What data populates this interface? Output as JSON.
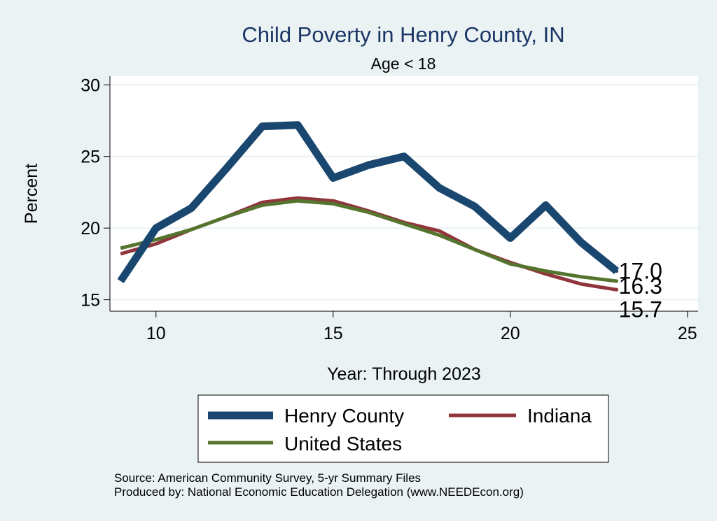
{
  "chart_data": {
    "type": "line",
    "title": "Child Poverty in Henry County, IN",
    "subtitle": "Age < 18",
    "xlabel": "Year: Through 2023",
    "ylabel": "Percent",
    "xlim": [
      8.7,
      25.3
    ],
    "ylim": [
      14.2,
      30.6
    ],
    "x_ticks": [
      "10",
      "15",
      "20",
      "25"
    ],
    "y_ticks": [
      "15",
      "20",
      "25",
      "30"
    ],
    "x": [
      9,
      10,
      11,
      12,
      13,
      14,
      15,
      16,
      17,
      18,
      19,
      20,
      21,
      22,
      23
    ],
    "series": [
      {
        "name": "Henry County",
        "color": "#1a476f",
        "values": [
          16.3,
          20.0,
          21.4,
          24.2,
          27.1,
          27.2,
          23.5,
          24.4,
          25.0,
          22.8,
          21.5,
          19.3,
          21.6,
          19.0,
          17.0
        ],
        "end_label": "17.0"
      },
      {
        "name": "Indiana",
        "color": "#90353b",
        "values": [
          18.2,
          18.9,
          19.9,
          20.8,
          21.8,
          22.1,
          21.9,
          21.2,
          20.4,
          19.8,
          18.5,
          17.6,
          16.8,
          16.1,
          15.7
        ],
        "end_label": "15.7"
      },
      {
        "name": "United States",
        "color": "#55752f",
        "values": [
          18.6,
          19.2,
          19.9,
          20.8,
          21.6,
          21.9,
          21.7,
          21.1,
          20.3,
          19.5,
          18.5,
          17.5,
          17.0,
          16.6,
          16.3
        ],
        "end_label": "16.3"
      }
    ],
    "legend": {
      "position": "bottom",
      "entries": [
        "Henry County",
        "Indiana",
        "United States"
      ]
    },
    "notes": [
      "Source: American Community Survey, 5-yr Summary Files",
      "Produced by: National Economic Education Delegation (www.NEEDEcon.org)"
    ]
  }
}
